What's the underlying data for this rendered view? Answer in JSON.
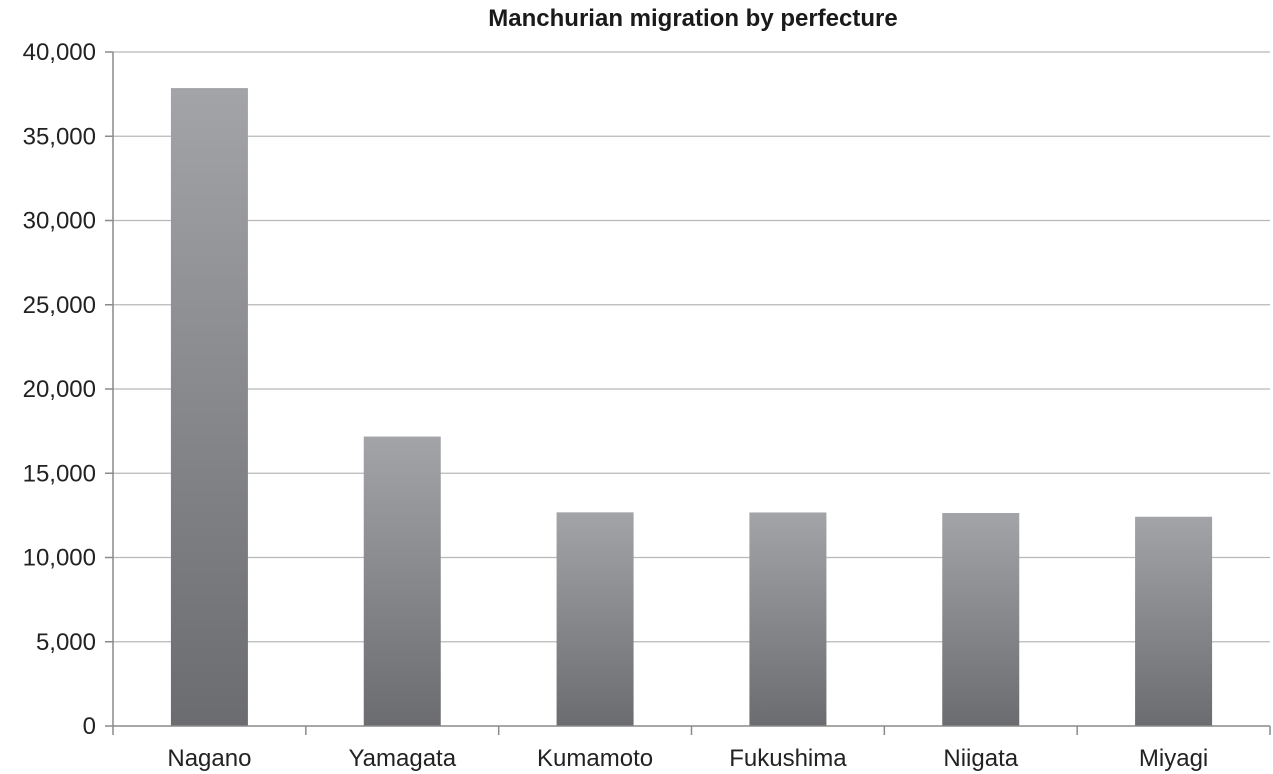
{
  "chart_data": {
    "type": "bar",
    "title": "Manchurian migration by perfecture",
    "xlabel": "",
    "ylabel": "",
    "categories": [
      "Nagano",
      "Yamagata",
      "Kumamoto",
      "Fukushima",
      "Niigata",
      "Miyagi"
    ],
    "values": [
      37859,
      17177,
      12680,
      12673,
      12641,
      12419
    ],
    "ylim": [
      0,
      40000
    ],
    "y_ticks": [
      0,
      5000,
      10000,
      15000,
      20000,
      25000,
      30000,
      35000,
      40000
    ],
    "y_tick_labels": [
      "0",
      "5,000",
      "10,000",
      "15,000",
      "20,000",
      "25,000",
      "30,000",
      "35,000",
      "40,000"
    ],
    "grid": true,
    "legend": "none",
    "bar_color_top": "#a3a4a8",
    "bar_color_bottom": "#6b6c70"
  }
}
